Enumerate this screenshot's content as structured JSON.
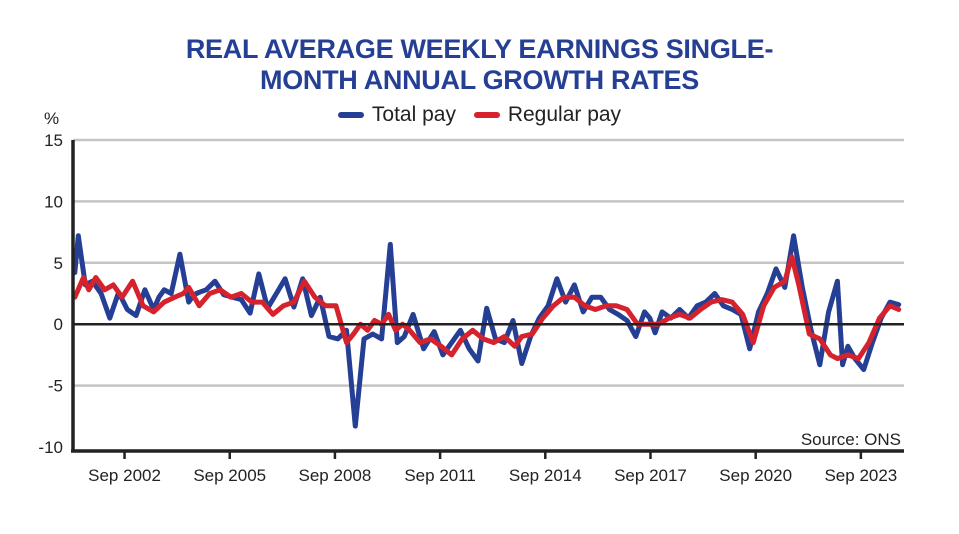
{
  "chart_data": {
    "type": "line",
    "title": "REAL AVERAGE WEEKLY EARNINGS SINGLE-MONTH ANNUAL GROWTH RATES",
    "title_lines": [
      "REAL AVERAGE WEEKLY EARNINGS SINGLE-",
      "MONTH ANNUAL GROWTH RATES"
    ],
    "ylabel": "%",
    "xlabel": "",
    "ylim": [
      -10,
      15
    ],
    "yticks": [
      15,
      10,
      5,
      0,
      -5,
      -10
    ],
    "xtick_labels": [
      "Sep 2002",
      "Sep 2005",
      "Sep 2008",
      "Sep 2011",
      "Sep 2014",
      "Sep 2017",
      "Sep 2020",
      "Sep 2023"
    ],
    "xtick_positions": [
      2002.67,
      2005.67,
      2008.67,
      2011.67,
      2014.67,
      2017.67,
      2020.67,
      2023.67
    ],
    "xlim": [
      2001.2,
      2024.9
    ],
    "grid": true,
    "legend_position": "top-center",
    "source": "Source: ONS",
    "series": [
      {
        "name": "Total pay",
        "color": "#253f94",
        "x": [
          2001.25,
          2001.35,
          2001.55,
          2001.75,
          2002.0,
          2002.25,
          2002.5,
          2002.75,
          2003.0,
          2003.25,
          2003.5,
          2003.65,
          2003.8,
          2004.0,
          2004.25,
          2004.5,
          2004.65,
          2004.8,
          2005.0,
          2005.25,
          2005.5,
          2005.75,
          2006.0,
          2006.25,
          2006.5,
          2006.75,
          2007.0,
          2007.25,
          2007.5,
          2007.75,
          2008.0,
          2008.25,
          2008.5,
          2008.75,
          2009.0,
          2009.25,
          2009.5,
          2009.75,
          2010.0,
          2010.25,
          2010.45,
          2010.65,
          2010.9,
          2011.2,
          2011.5,
          2011.75,
          2012.0,
          2012.25,
          2012.5,
          2012.75,
          2013.0,
          2013.25,
          2013.5,
          2013.75,
          2014.0,
          2014.25,
          2014.5,
          2014.75,
          2015.0,
          2015.25,
          2015.5,
          2015.75,
          2016.0,
          2016.25,
          2016.5,
          2016.75,
          2017.0,
          2017.25,
          2017.5,
          2017.65,
          2017.8,
          2018.0,
          2018.25,
          2018.5,
          2018.75,
          2019.0,
          2019.25,
          2019.5,
          2019.75,
          2020.0,
          2020.25,
          2020.5,
          2020.75,
          2021.0,
          2021.25,
          2021.5,
          2021.75,
          2022.0,
          2022.25,
          2022.5,
          2022.75,
          2023.0,
          2023.15,
          2023.3,
          2023.5,
          2023.75,
          2024.0,
          2024.25,
          2024.5,
          2024.75
        ],
        "y": [
          4.2,
          7.2,
          3.2,
          3.5,
          2.5,
          0.5,
          2.6,
          1.2,
          0.7,
          2.8,
          1.2,
          2.2,
          2.8,
          2.5,
          5.7,
          1.8,
          2.4,
          2.6,
          2.8,
          3.5,
          2.4,
          2.2,
          2.0,
          0.9,
          4.1,
          1.3,
          2.5,
          3.7,
          1.4,
          3.7,
          0.7,
          2.2,
          -1.0,
          -1.2,
          -0.5,
          -8.3,
          -1.2,
          -0.8,
          -1.2,
          6.5,
          -1.5,
          -1.0,
          0.8,
          -2.0,
          -0.6,
          -2.5,
          -1.5,
          -0.5,
          -2.0,
          -3.0,
          1.3,
          -1.2,
          -1.5,
          0.3,
          -3.2,
          -1.0,
          0.5,
          1.5,
          3.7,
          1.8,
          3.2,
          1.0,
          2.2,
          2.2,
          1.2,
          0.8,
          0.3,
          -1.0,
          1.0,
          0.5,
          -0.7,
          1.0,
          0.5,
          1.2,
          0.5,
          1.5,
          1.8,
          2.5,
          1.5,
          1.2,
          0.8,
          -2.0,
          1.0,
          2.5,
          4.5,
          3.0,
          7.2,
          3.0,
          -0.5,
          -3.3,
          1.0,
          3.5,
          -3.3,
          -1.8,
          -2.8,
          -3.7,
          -1.5,
          0.5,
          1.8,
          1.6
        ]
      },
      {
        "name": "Regular pay",
        "color": "#d6222c",
        "x": [
          2001.25,
          2001.5,
          2001.65,
          2001.85,
          2002.1,
          2002.35,
          2002.6,
          2002.9,
          2003.2,
          2003.5,
          2003.8,
          2004.1,
          2004.35,
          2004.5,
          2004.8,
          2005.1,
          2005.4,
          2005.7,
          2006.0,
          2006.3,
          2006.6,
          2006.9,
          2007.2,
          2007.5,
          2007.8,
          2008.1,
          2008.4,
          2008.7,
          2009.0,
          2009.2,
          2009.4,
          2009.6,
          2009.8,
          2010.0,
          2010.2,
          2010.4,
          2010.6,
          2010.8,
          2011.1,
          2011.4,
          2011.7,
          2012.0,
          2012.3,
          2012.6,
          2012.9,
          2013.2,
          2013.5,
          2013.8,
          2014.0,
          2014.3,
          2014.6,
          2014.9,
          2015.2,
          2015.5,
          2015.8,
          2016.1,
          2016.4,
          2016.7,
          2017.0,
          2017.3,
          2017.6,
          2017.9,
          2018.2,
          2018.5,
          2018.8,
          2019.1,
          2019.4,
          2019.7,
          2020.0,
          2020.3,
          2020.6,
          2020.9,
          2021.2,
          2021.5,
          2021.7,
          2021.9,
          2022.2,
          2022.5,
          2022.8,
          2023.0,
          2023.3,
          2023.6,
          2023.9,
          2024.2,
          2024.5,
          2024.75
        ],
        "y": [
          2.2,
          3.8,
          2.8,
          3.8,
          2.8,
          3.2,
          2.2,
          3.5,
          1.5,
          1.0,
          1.8,
          2.2,
          2.5,
          3.0,
          1.5,
          2.5,
          2.8,
          2.2,
          2.5,
          1.8,
          1.8,
          0.8,
          1.5,
          1.8,
          3.5,
          2.2,
          1.5,
          1.5,
          -1.5,
          -0.8,
          0.0,
          -0.5,
          0.3,
          0.0,
          0.8,
          -0.5,
          0.0,
          -0.5,
          -1.5,
          -1.2,
          -1.8,
          -2.5,
          -1.2,
          -0.5,
          -1.2,
          -1.5,
          -1.0,
          -1.8,
          -1.0,
          -0.8,
          0.5,
          1.5,
          2.2,
          2.2,
          1.5,
          1.2,
          1.5,
          1.5,
          1.2,
          0.0,
          0.0,
          0.0,
          0.5,
          0.8,
          0.5,
          1.2,
          1.8,
          2.0,
          1.8,
          0.8,
          -1.5,
          1.5,
          3.0,
          3.5,
          5.5,
          3.2,
          -0.8,
          -1.2,
          -2.5,
          -2.8,
          -2.5,
          -2.8,
          -1.5,
          0.5,
          1.5,
          1.2
        ]
      }
    ]
  }
}
